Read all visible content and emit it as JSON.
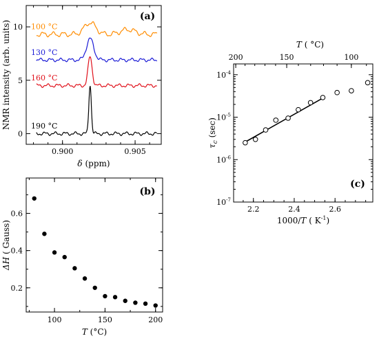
{
  "chart_data": [
    {
      "panel": "a",
      "panel_label": "(a)",
      "type": "line",
      "xlabel_symbol": "δ",
      "xlabel_unit": "(ppm)",
      "ylabel": "NMR intensity (arb. units)",
      "xlim": [
        0.8975,
        0.9068
      ],
      "ylim": [
        -1,
        12
      ],
      "x_ticks": [
        0.9,
        0.905
      ],
      "x_tick_labels": [
        "0.900",
        "0.905"
      ],
      "y_ticks": [
        0,
        5,
        10
      ],
      "y_tick_labels": [
        "0",
        "5",
        "10"
      ],
      "series": [
        {
          "name": "100 °C",
          "color": "#ff8c00",
          "offset": 9.3,
          "height": 1.1,
          "width": 0.00055,
          "center": 0.9019
        },
        {
          "name": "130 °C",
          "color": "#1a1ad6",
          "offset": 6.9,
          "height": 2.0,
          "width": 0.00035,
          "center": 0.9019
        },
        {
          "name": "160 °C",
          "color": "#e0101a",
          "offset": 4.5,
          "height": 2.7,
          "width": 0.0002,
          "center": 0.9019
        },
        {
          "name": "190 °C",
          "color": "#000000",
          "offset": 0.0,
          "height": 4.6,
          "width": 0.00012,
          "center": 0.9019
        }
      ]
    },
    {
      "panel": "b",
      "panel_label": "(b)",
      "type": "scatter",
      "xlabel_symbol": "T",
      "xlabel_unit": "(°C)",
      "ylabel_symbol": "ΔH",
      "ylabel_unit": "( Gauss)",
      "xlim": [
        72,
        207
      ],
      "ylim": [
        0.07,
        0.79
      ],
      "x_ticks": [
        100,
        150,
        200
      ],
      "x_tick_labels": [
        "100",
        "150",
        "200"
      ],
      "y_ticks": [
        0.2,
        0.4,
        0.6
      ],
      "y_tick_labels": [
        "0.2",
        "0.4",
        "0.6"
      ],
      "x": [
        80,
        90,
        100,
        110,
        120,
        130,
        140,
        150,
        160,
        170,
        180,
        190,
        200
      ],
      "y": [
        0.68,
        0.49,
        0.39,
        0.365,
        0.305,
        0.25,
        0.2,
        0.155,
        0.15,
        0.13,
        0.12,
        0.115,
        0.105
      ]
    },
    {
      "panel": "c",
      "panel_label": "(c)",
      "type": "scatter",
      "xlabel": "1000/",
      "xlabel_symbol": "T",
      "xlabel_unit": "( K",
      "xlabel_superscript": "-1",
      "ylabel_symbol": "τ",
      "ylabel_subscript": "c",
      "ylabel_unit": "(sec)",
      "top_xlabel_symbol": "T",
      "top_xlabel_unit": "(  °C)",
      "xlim": [
        2.103,
        2.785
      ],
      "yscale": "log",
      "ylim": [
        1e-07,
        0.00018
      ],
      "x_ticks": [
        2.2,
        2.4,
        2.6
      ],
      "x_tick_labels": [
        "2.2",
        "2.4",
        "2.6"
      ],
      "top_ticks": [
        200,
        150,
        100
      ],
      "top_tick_labels": [
        "200",
        "150",
        "100"
      ],
      "y_ticks": [
        1e-07,
        1e-06,
        1e-05,
        0.0001
      ],
      "y_tick_labels_base": [
        "10",
        "10",
        "10",
        "10"
      ],
      "y_tick_labels_exp": [
        "-7",
        "-6",
        "-5",
        "-4"
      ],
      "x": [
        2.16,
        2.21,
        2.26,
        2.31,
        2.37,
        2.42,
        2.48,
        2.54,
        2.61,
        2.68,
        2.76
      ],
      "y": [
        2.5e-06,
        3e-06,
        5e-06,
        8.5e-06,
        9.5e-06,
        1.5e-05,
        2.2e-05,
        2.9e-05,
        3.8e-05,
        4.2e-05,
        6.5e-05
      ],
      "fit_line": {
        "x": [
          2.16,
          2.55
        ],
        "y": [
          2.6e-06,
          3e-05
        ]
      }
    }
  ]
}
